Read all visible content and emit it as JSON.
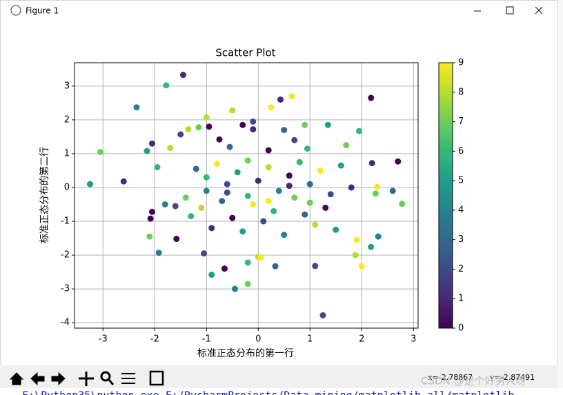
{
  "window": {
    "title": "Figure 1",
    "coord_x": "x=-2.78867",
    "coord_y": "y=-2.87491",
    "watermark": "CSDN @是个好男人呀",
    "console": "F:\\Python35\\python.exe F:/PycharmProjects/Data mining/matplotlib all/matplotlib"
  },
  "chart_data": {
    "type": "scatter",
    "title": "Scatter Plot",
    "x_label": "标准正态分布的第一行",
    "y_label": "标准正态分布的第二行",
    "x": [
      -1.45,
      -1.78,
      -2.35,
      2.18,
      0.65,
      0.43,
      -3.05,
      -3.25,
      2.7,
      2.78,
      1.25,
      -0.45,
      -0.9,
      -0.2,
      -0.2,
      0,
      0.05,
      0.33,
      -0.65,
      -1.05,
      -1.92,
      -2.1,
      -1.58,
      2.0,
      1.1,
      1.88,
      1.9,
      2.32,
      2.18,
      2.27,
      2.3,
      2.2,
      2.6,
      -0.5,
      -0.1,
      0.25,
      0.9,
      1.35,
      1.7,
      1.95,
      -2.6,
      -2.05,
      -2.15,
      -1.95,
      -2.05,
      -2.08,
      -1.7,
      -1.5,
      -1.35,
      -1.15,
      -1.0,
      -0.95,
      -0.75,
      -0.55,
      -0.3,
      -0.1,
      0.2,
      0.5,
      0.7,
      0.95,
      -1.2,
      -1.0,
      -0.8,
      -0.6,
      -0.4,
      -0.2,
      0,
      0.2,
      0.4,
      0.6,
      0.8,
      1.0,
      1.2,
      1.4,
      1.6,
      1.8,
      -1.4,
      -1.6,
      -1.8,
      -1.3,
      -1.1,
      -0.9,
      -0.7,
      -0.5,
      -0.3,
      -0.1,
      0.1,
      0.3,
      0.5,
      0.7,
      0.9,
      1.1,
      1.3,
      1.5,
      -0.6,
      -0.2,
      0.2,
      0.6,
      1.0,
      -1.0
    ],
    "values": [
      3.33,
      3.02,
      2.37,
      2.65,
      2.7,
      2.6,
      1.05,
      0.1,
      0.77,
      -0.48,
      -3.78,
      -3.0,
      -2.58,
      -2.22,
      -2.85,
      -2.05,
      -2.07,
      -2.33,
      -2.4,
      -1.95,
      -1.93,
      -1.45,
      -1.52,
      -2.33,
      -2.32,
      -2.0,
      -1.55,
      -1.45,
      -1.76,
      -0.18,
      0.02,
      0.72,
      -0.1,
      2.28,
      1.95,
      2.37,
      1.85,
      1.85,
      1.25,
      1.67,
      0.18,
      1.3,
      1.08,
      0.6,
      -0.72,
      -0.92,
      1.17,
      1.57,
      1.72,
      1.78,
      2.07,
      1.8,
      1.42,
      1.2,
      1.85,
      1.72,
      1.1,
      1.7,
      1.4,
      1.15,
      0.55,
      0.3,
      0.7,
      0.1,
      0.45,
      0.8,
      0.2,
      0.6,
      -0.1,
      0.35,
      0.75,
      0.1,
      0.5,
      -0.2,
      0.65,
      0.0,
      -0.3,
      -0.55,
      -0.5,
      -0.85,
      -0.6,
      -1.2,
      -0.4,
      -0.9,
      -1.3,
      -0.5,
      -1.0,
      -0.7,
      -1.4,
      -0.3,
      -0.8,
      -1.1,
      -0.6,
      -1.25,
      -0.15,
      -0.25,
      -0.4,
      0.05,
      -0.45,
      -0.1
    ],
    "color_values": [
      1,
      6,
      4,
      0,
      9,
      1,
      7,
      5,
      0,
      7,
      2,
      4,
      5,
      6,
      7,
      8,
      9,
      3,
      0,
      2,
      4,
      7,
      0,
      9,
      2,
      8,
      9,
      4,
      5,
      7,
      9,
      1,
      3,
      8,
      2,
      9,
      7,
      5,
      7,
      6,
      1,
      1,
      5,
      6,
      0,
      0,
      8,
      2,
      8,
      7,
      8,
      0,
      0,
      3,
      0,
      1,
      0,
      3,
      2,
      6,
      3,
      6,
      9,
      2,
      5,
      7,
      1,
      8,
      4,
      0,
      6,
      3,
      9,
      2,
      5,
      1,
      7,
      2,
      4,
      6,
      8,
      1,
      3,
      0,
      5,
      9,
      2,
      6,
      4,
      7,
      3,
      8,
      0,
      5,
      2,
      6,
      9,
      1,
      7,
      4
    ],
    "colormap": "viridis",
    "xlim": [
      -3.55,
      3.09
    ],
    "ylim": [
      -4.16,
      3.69
    ],
    "xticks": [
      -3,
      -2,
      -1,
      0,
      1,
      2,
      3
    ],
    "yticks": [
      -4,
      -3,
      -2,
      -1,
      0,
      1,
      2,
      3
    ],
    "clim": [
      0,
      9
    ],
    "cticks": [
      0,
      1,
      2,
      3,
      4,
      5,
      6,
      7,
      8,
      9
    ],
    "grid": true
  }
}
